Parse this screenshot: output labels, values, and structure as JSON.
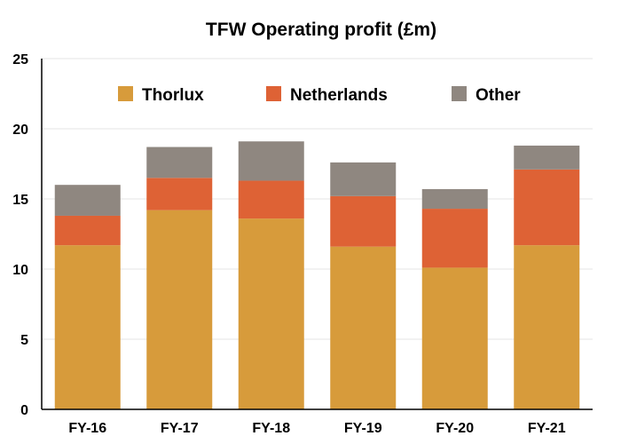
{
  "chart_data": {
    "type": "bar",
    "stacked": true,
    "title": "TFW Operating profit (£m)",
    "xlabel": "",
    "ylabel": "",
    "categories": [
      "FY-16",
      "FY-17",
      "FY-18",
      "FY-19",
      "FY-20",
      "FY-21"
    ],
    "ylim": [
      0,
      25
    ],
    "yticks": [
      0,
      5,
      10,
      15,
      20,
      25
    ],
    "grid": true,
    "legend_position": "top",
    "series": [
      {
        "name": "Thorlux",
        "color": "#D79B3B",
        "values": [
          11.7,
          14.2,
          13.6,
          11.6,
          10.1,
          11.7
        ]
      },
      {
        "name": "Netherlands",
        "color": "#DE6235",
        "values": [
          2.1,
          2.3,
          2.7,
          3.6,
          4.2,
          5.4
        ]
      },
      {
        "name": "Other",
        "color": "#8F8780",
        "values": [
          2.2,
          2.2,
          2.8,
          2.4,
          1.4,
          1.7
        ]
      }
    ]
  }
}
